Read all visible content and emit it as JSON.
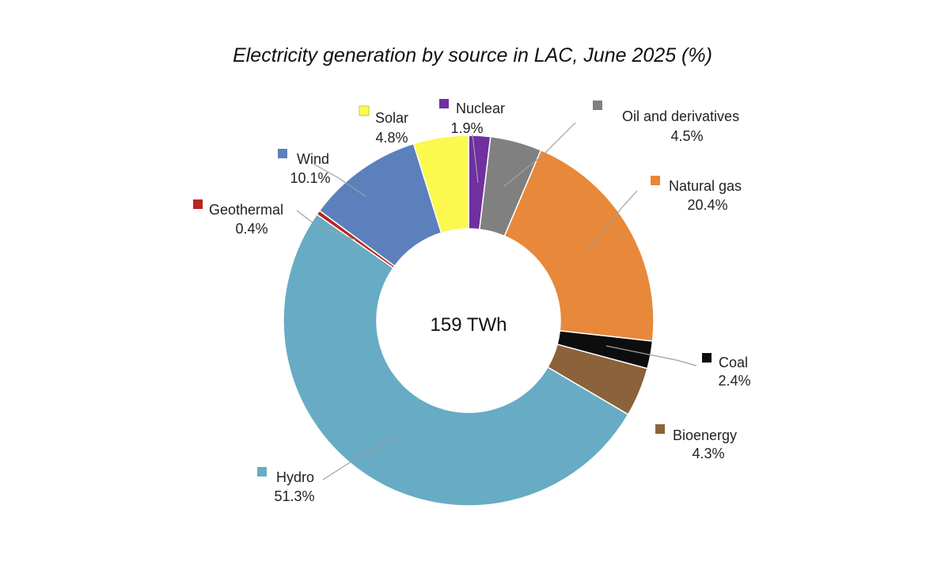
{
  "chart_data": {
    "type": "pie",
    "variant": "donut",
    "title": "Electricity generation by source in LAC, June 2025 (%)",
    "center_label": "159 TWh",
    "unit": "%",
    "slices": [
      {
        "name": "Nuclear",
        "value": 1.9,
        "label": "1.9%",
        "color": "#7030a0"
      },
      {
        "name": "Oil and derivatives",
        "value": 4.5,
        "label": "4.5%",
        "color": "#808080"
      },
      {
        "name": "Natural gas",
        "value": 20.4,
        "label": "20.4%",
        "color": "#e8883a"
      },
      {
        "name": "Coal",
        "value": 2.4,
        "label": "2.4%",
        "color": "#0d0d0d"
      },
      {
        "name": "Bioenergy",
        "value": 4.3,
        "label": "4.3%",
        "color": "#8b6239"
      },
      {
        "name": "Hydro",
        "value": 51.3,
        "label": "51.3%",
        "color": "#67abc4"
      },
      {
        "name": "Geothermal",
        "value": 0.4,
        "label": "0.4%",
        "color": "#b7261f"
      },
      {
        "name": "Wind",
        "value": 10.1,
        "label": "10.1%",
        "color": "#5b80bb"
      },
      {
        "name": "Solar",
        "value": 4.8,
        "label": "4.8%",
        "color": "#fbf94e"
      }
    ]
  }
}
